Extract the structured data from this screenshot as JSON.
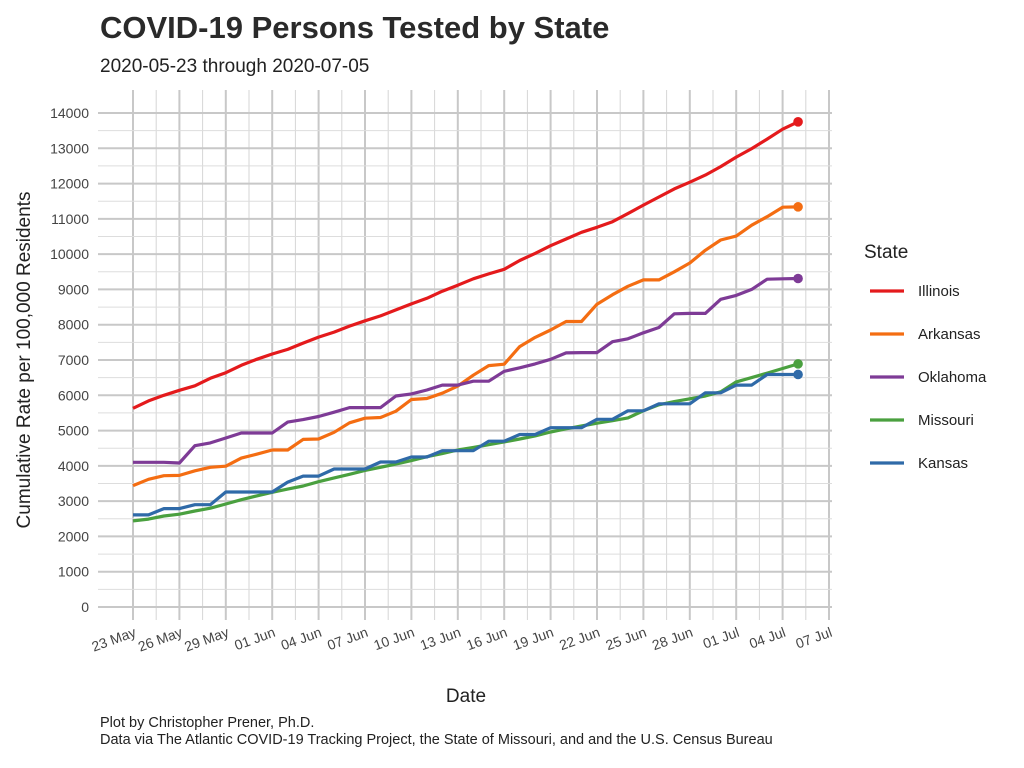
{
  "title": "COVID-19 Persons Tested by State",
  "subtitle": "2020-05-23 through 2020-07-05",
  "caption": {
    "line1": "Plot by Christopher Prener, Ph.D.",
    "line2": "Data via The Atlantic COVID-19 Tracking Project, the State of Missouri, and and the U.S. Census Bureau"
  },
  "chart_data": {
    "type": "line",
    "xlabel": "Date",
    "ylabel": "Cumulative Rate per 100,000 Residents",
    "xlim": [
      "2020-05-23",
      "2020-07-07"
    ],
    "ylim": [
      0,
      14000
    ],
    "x_ticks": [
      {
        "date": "2020-05-23",
        "label": "23 May"
      },
      {
        "date": "2020-05-26",
        "label": "26 May"
      },
      {
        "date": "2020-05-29",
        "label": "29 May"
      },
      {
        "date": "2020-06-01",
        "label": "01 Jun"
      },
      {
        "date": "2020-06-04",
        "label": "04 Jun"
      },
      {
        "date": "2020-06-07",
        "label": "07 Jun"
      },
      {
        "date": "2020-06-10",
        "label": "10 Jun"
      },
      {
        "date": "2020-06-13",
        "label": "13 Jun"
      },
      {
        "date": "2020-06-16",
        "label": "16 Jun"
      },
      {
        "date": "2020-06-19",
        "label": "19 Jun"
      },
      {
        "date": "2020-06-22",
        "label": "22 Jun"
      },
      {
        "date": "2020-06-25",
        "label": "25 Jun"
      },
      {
        "date": "2020-06-28",
        "label": "28 Jun"
      },
      {
        "date": "2020-07-01",
        "label": "01 Jul"
      },
      {
        "date": "2020-07-04",
        "label": "04 Jul"
      },
      {
        "date": "2020-07-07",
        "label": "07 Jul"
      }
    ],
    "y_ticks": [
      0,
      1000,
      2000,
      3000,
      4000,
      5000,
      6000,
      7000,
      8000,
      9000,
      10000,
      11000,
      12000,
      13000,
      14000
    ],
    "grid": true,
    "legend": {
      "title": "State",
      "position": "right"
    },
    "x": [
      "2020-05-23",
      "2020-05-24",
      "2020-05-25",
      "2020-05-26",
      "2020-05-27",
      "2020-05-28",
      "2020-05-29",
      "2020-05-30",
      "2020-05-31",
      "2020-06-01",
      "2020-06-02",
      "2020-06-03",
      "2020-06-04",
      "2020-06-05",
      "2020-06-06",
      "2020-06-07",
      "2020-06-08",
      "2020-06-09",
      "2020-06-10",
      "2020-06-11",
      "2020-06-12",
      "2020-06-13",
      "2020-06-14",
      "2020-06-15",
      "2020-06-16",
      "2020-06-17",
      "2020-06-18",
      "2020-06-19",
      "2020-06-20",
      "2020-06-21",
      "2020-06-22",
      "2020-06-23",
      "2020-06-24",
      "2020-06-25",
      "2020-06-26",
      "2020-06-27",
      "2020-06-28",
      "2020-06-29",
      "2020-06-30",
      "2020-07-01",
      "2020-07-02",
      "2020-07-03",
      "2020-07-04",
      "2020-07-05"
    ],
    "series": [
      {
        "name": "Illinois",
        "color": "#e41a1c",
        "values": [
          5630,
          5840,
          6000,
          6140,
          6270,
          6480,
          6640,
          6850,
          7020,
          7170,
          7300,
          7480,
          7650,
          7790,
          7960,
          8110,
          8250,
          8420,
          8590,
          8750,
          8950,
          9120,
          9300,
          9440,
          9570,
          9820,
          10020,
          10240,
          10430,
          10620,
          10760,
          10920,
          11150,
          11390,
          11620,
          11850,
          12040,
          12240,
          12480,
          12750,
          12990,
          13260,
          13540,
          13750
        ]
      },
      {
        "name": "Arkansas",
        "color": "#f46d12",
        "values": [
          3440,
          3620,
          3720,
          3730,
          3860,
          3960,
          3990,
          4220,
          4330,
          4450,
          4450,
          4750,
          4760,
          4950,
          5220,
          5350,
          5370,
          5550,
          5880,
          5910,
          6060,
          6260,
          6570,
          6840,
          6880,
          7380,
          7640,
          7850,
          8090,
          8090,
          8580,
          8850,
          9090,
          9270,
          9270,
          9500,
          9750,
          10110,
          10400,
          10510,
          10820,
          11060,
          11330,
          11340
        ]
      },
      {
        "name": "Oklahoma",
        "color": "#7e3b96",
        "values": [
          4100,
          4100,
          4100,
          4080,
          4570,
          4650,
          4790,
          4930,
          4930,
          4930,
          5240,
          5310,
          5400,
          5520,
          5650,
          5650,
          5650,
          5980,
          6040,
          6150,
          6290,
          6290,
          6400,
          6400,
          6680,
          6780,
          6890,
          7020,
          7200,
          7210,
          7210,
          7520,
          7600,
          7770,
          7920,
          8310,
          8320,
          8320,
          8720,
          8830,
          9000,
          9290,
          9300,
          9310
        ]
      },
      {
        "name": "Missouri",
        "color": "#4aa03f",
        "values": [
          2440,
          2490,
          2580,
          2630,
          2720,
          2800,
          2920,
          3040,
          3150,
          3250,
          3340,
          3430,
          3550,
          3660,
          3760,
          3870,
          3960,
          4050,
          4150,
          4260,
          4350,
          4450,
          4520,
          4600,
          4680,
          4760,
          4850,
          4960,
          5050,
          5130,
          5210,
          5280,
          5360,
          5560,
          5730,
          5820,
          5900,
          5980,
          6100,
          6380,
          6500,
          6630,
          6760,
          6890
        ]
      },
      {
        "name": "Kansas",
        "color": "#2f6aa8",
        "values": [
          2610,
          2610,
          2790,
          2790,
          2900,
          2900,
          3260,
          3260,
          3260,
          3260,
          3540,
          3710,
          3710,
          3910,
          3910,
          3910,
          4110,
          4110,
          4250,
          4250,
          4430,
          4430,
          4430,
          4700,
          4700,
          4890,
          4890,
          5080,
          5080,
          5080,
          5320,
          5320,
          5560,
          5560,
          5760,
          5760,
          5760,
          6070,
          6070,
          6290,
          6290,
          6590,
          6590,
          6590
        ]
      }
    ]
  }
}
